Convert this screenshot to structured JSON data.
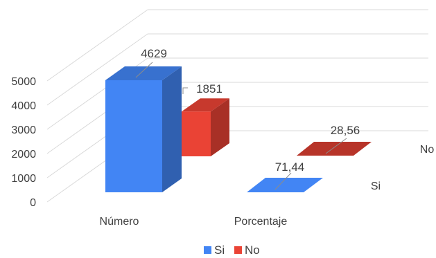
{
  "chart_data": {
    "type": "bar",
    "style": "3d-column",
    "title": "",
    "xlabel": "",
    "ylabel": "",
    "categories": [
      "Número",
      "Porcentaje"
    ],
    "series": [
      {
        "name": "Si",
        "values": [
          4629,
          71.44
        ],
        "color": "#4285f4",
        "labels": [
          "4629",
          "71,44"
        ]
      },
      {
        "name": "No",
        "values": [
          1851,
          28.56
        ],
        "color": "#ea4335",
        "labels": [
          "1851",
          "28,56"
        ]
      }
    ],
    "ylim": [
      0,
      5000
    ],
    "yticks": [
      "0",
      "1000",
      "2000",
      "3000",
      "4000",
      "5000"
    ],
    "grid": true,
    "legend": "bottom"
  }
}
